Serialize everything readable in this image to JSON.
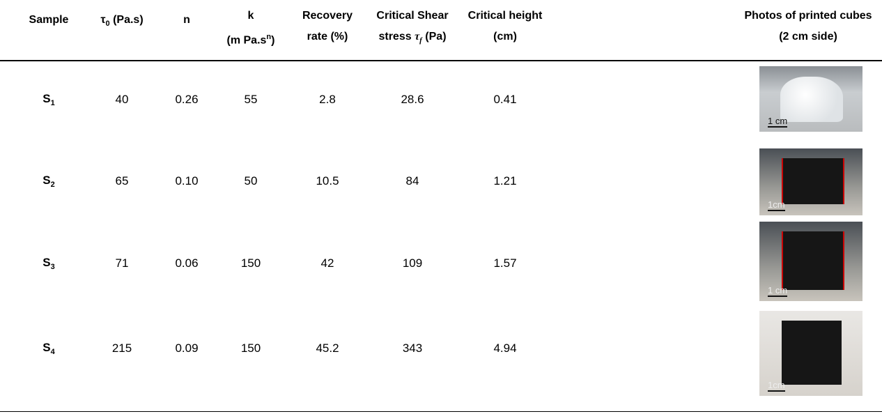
{
  "table": {
    "header": [
      {
        "lines": [
          [
            {
              "t": "Sample"
            }
          ]
        ]
      },
      {
        "lines": [
          [
            {
              "t": "τ"
            },
            {
              "sub": "0"
            },
            {
              "t": " (Pa.s)"
            }
          ]
        ]
      },
      {
        "lines": [
          [
            {
              "t": "n"
            }
          ]
        ]
      },
      {
        "lines": [
          [
            {
              "t": "k"
            }
          ],
          [
            {
              "t": "(m Pa.s"
            },
            {
              "sup": "n"
            },
            {
              "t": ")"
            }
          ]
        ]
      },
      {
        "lines": [
          [
            {
              "t": "Recovery"
            }
          ],
          [
            {
              "t": "rate (%)"
            }
          ]
        ]
      },
      {
        "lines": [
          [
            {
              "t": "Critical Shear"
            }
          ],
          [
            {
              "t": "stress "
            },
            {
              "i": "τ"
            },
            {
              "isub": "f"
            },
            {
              "t": " (Pa)"
            }
          ]
        ]
      },
      {
        "lines": [
          [
            {
              "t": "Critical height"
            }
          ],
          [
            {
              "t": "(cm)"
            }
          ]
        ]
      },
      {
        "lines": [
          [
            {
              "t": "Photos of printed cubes"
            }
          ],
          [
            {
              "t": "(2 cm side)"
            }
          ]
        ]
      }
    ],
    "rows": [
      {
        "sample": {
          "base": "S",
          "sub": "1"
        },
        "cells": [
          "40",
          "0.26",
          "55",
          "2.8",
          "28.6",
          "0.41"
        ],
        "scale_label": "1 cm"
      },
      {
        "sample": {
          "base": "S",
          "sub": "2"
        },
        "cells": [
          "65",
          "0.10",
          "50",
          "10.5",
          "84",
          "1.21"
        ],
        "scale_label": "1cm"
      },
      {
        "sample": {
          "base": "S",
          "sub": "3"
        },
        "cells": [
          "71",
          "0.06",
          "150",
          "42",
          "109",
          "1.57"
        ],
        "scale_label": "1 cm"
      },
      {
        "sample": {
          "base": "S",
          "sub": "4"
        },
        "cells": [
          "215",
          "0.09",
          "150",
          "45.2",
          "343",
          "4.94"
        ],
        "scale_label": "1cm"
      }
    ]
  }
}
